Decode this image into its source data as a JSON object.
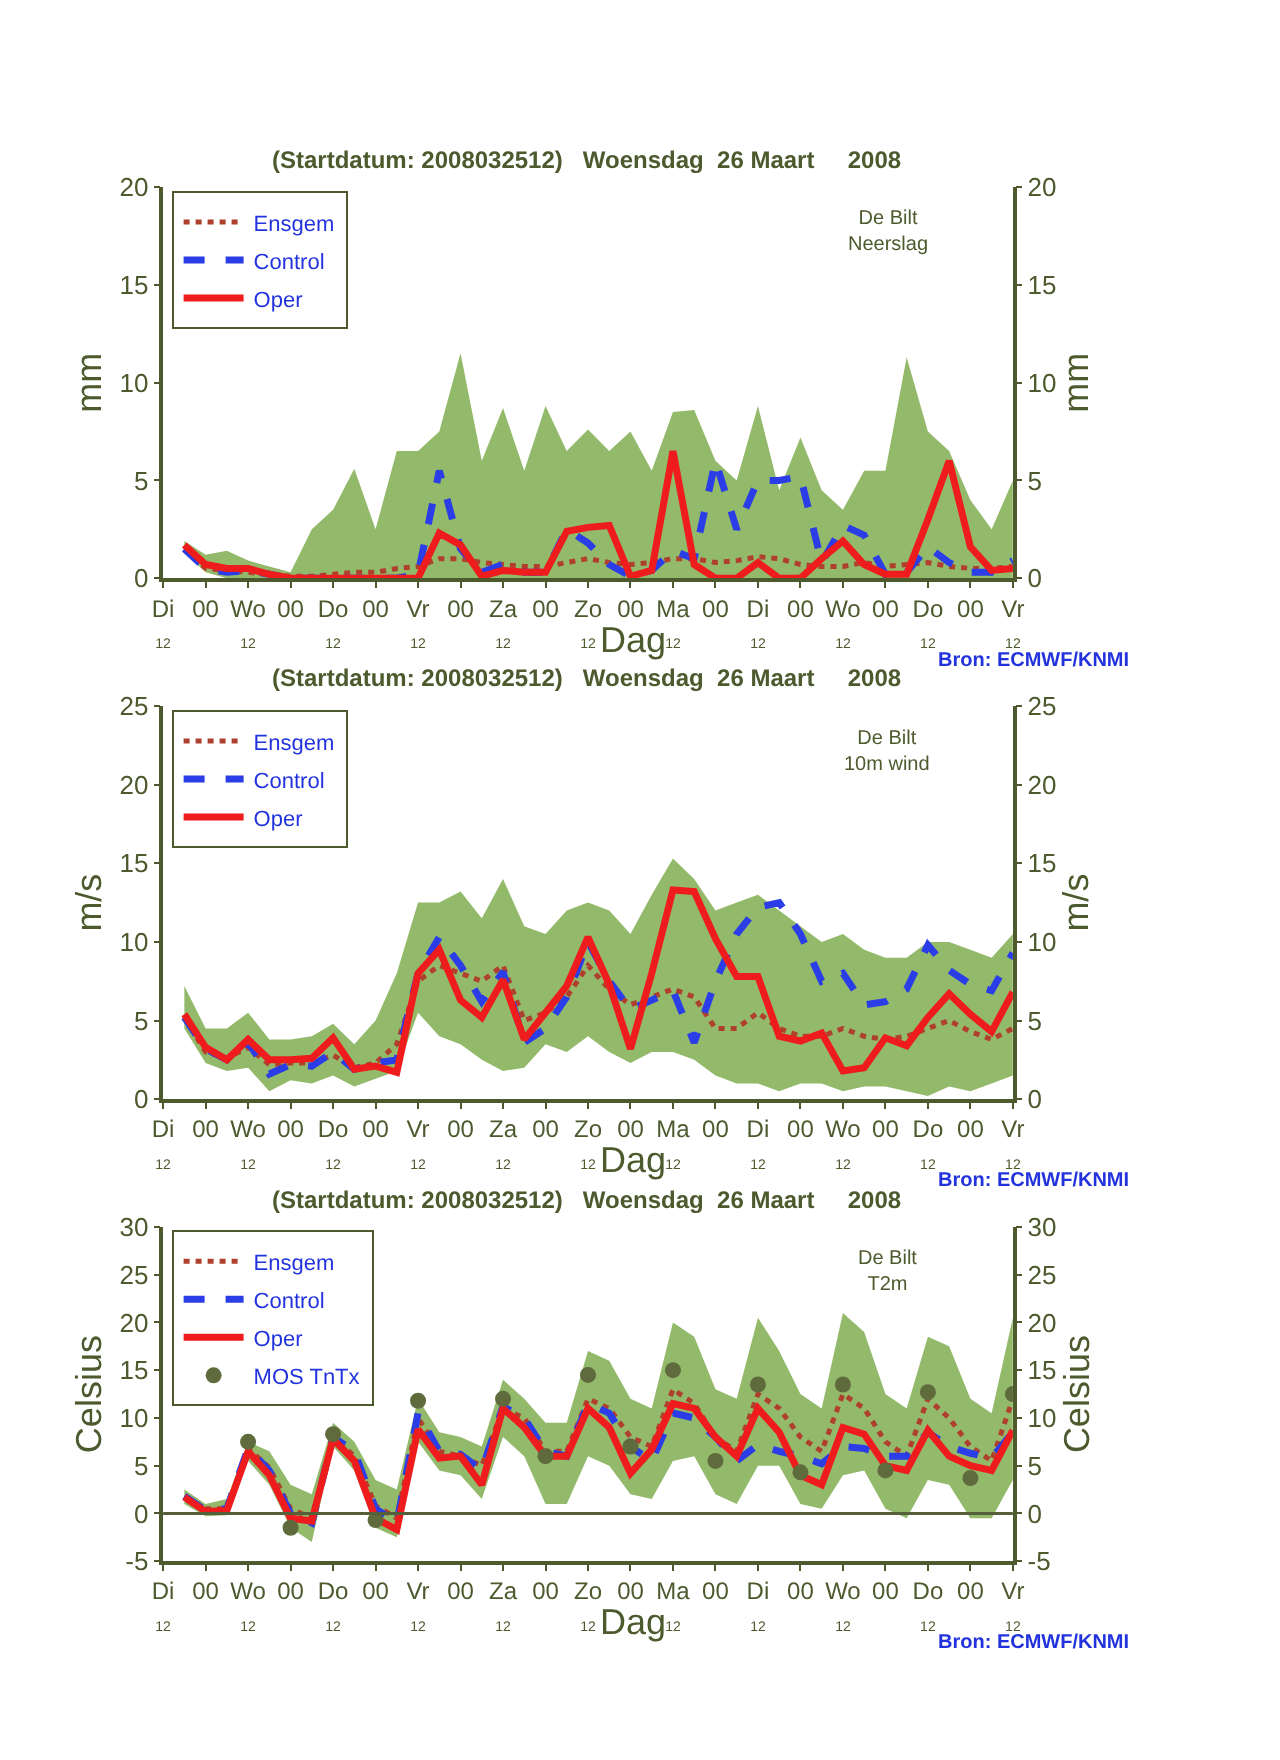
{
  "chart_data": [
    {
      "type": "line",
      "title": "(Startdatum: 2008032512)   Woensdag  26 Maart     2008",
      "xlabel": "Dag",
      "ylabel": "mm",
      "y2label": "mm",
      "annotations": [
        "De Bilt\nNeerslag",
        "Bron: ECMWF/KNMI"
      ],
      "categories": [
        "Di\n12",
        null,
        "00",
        null,
        "Wo\n12",
        null,
        "00",
        null,
        "Do\n12",
        null,
        "00",
        null,
        "Vr\n12",
        null,
        "00",
        null,
        "Za\n12",
        null,
        "00",
        null,
        "Zo\n12",
        null,
        "00",
        null,
        "Ma\n12",
        null,
        "00",
        null,
        "Di\n12",
        null,
        "00",
        null,
        "Wo\n12",
        null,
        "00",
        null,
        "Do\n12",
        null,
        "00",
        null,
        "Vr\n12"
      ],
      "ylim": [
        0,
        20
      ],
      "yticks": [
        0,
        5,
        10,
        15,
        20
      ],
      "y2lim": [
        0,
        20
      ],
      "y2ticks": [
        0,
        5,
        10,
        15,
        20
      ],
      "legend": "top left",
      "series": [
        {
          "name": "Ensgem",
          "color": "#b0402e",
          "line_style": "dotted",
          "values": [
            null,
            1.5,
            0.5,
            0.4,
            0.3,
            0.2,
            0.1,
            0.1,
            0.2,
            0.3,
            0.3,
            0.5,
            0.6,
            1.0,
            1.0,
            0.8,
            0.7,
            0.6,
            0.6,
            0.8,
            1.0,
            0.8,
            0.7,
            0.8,
            1.0,
            1.0,
            0.8,
            0.9,
            1.1,
            1.0,
            0.7,
            0.6,
            0.6,
            0.8,
            0.6,
            0.7,
            0.8,
            0.6,
            0.5,
            0.5,
            0.6
          ],
          "lower": [
            null,
            1.3,
            0.3,
            0,
            0,
            0,
            0,
            0,
            0,
            0,
            0,
            0,
            0,
            0,
            0,
            0,
            0,
            0,
            0,
            0,
            0,
            0,
            0,
            0,
            0,
            0,
            0,
            0,
            0,
            0,
            0,
            0,
            0,
            0,
            0,
            0,
            0,
            0,
            0,
            0,
            0
          ],
          "upper": [
            null,
            1.9,
            1.2,
            1.4,
            0.9,
            0.6,
            0.3,
            2.5,
            3.5,
            5.6,
            2.5,
            6.5,
            6.5,
            7.5,
            11.5,
            6.0,
            8.7,
            5.5,
            8.8,
            6.5,
            7.6,
            6.5,
            7.5,
            5.5,
            8.5,
            8.6,
            6.0,
            5.0,
            8.8,
            4.5,
            7.2,
            4.5,
            3.5,
            5.5,
            5.5,
            11.3,
            7.5,
            6.5,
            4.0,
            2.5,
            5.0
          ]
        },
        {
          "name": "Control",
          "color": "#2a3de6",
          "line_style": "dashed",
          "values": [
            null,
            1.5,
            0.5,
            0.3,
            0.4,
            0.2,
            0,
            0,
            0,
            0,
            0,
            0,
            0.2,
            5.5,
            1.5,
            0.3,
            0.7,
            0.3,
            0.3,
            2.5,
            1.8,
            0.7,
            0.1,
            0.4,
            1.4,
            1.0,
            6.0,
            2.5,
            5.0,
            5.0,
            5.2,
            0.8,
            2.7,
            2.2,
            0.2,
            0.3,
            1.6,
            0.8,
            0.3,
            0.3,
            0.9
          ]
        },
        {
          "name": "Oper",
          "color": "#ee1c1c",
          "line_style": "solid",
          "values": [
            null,
            1.7,
            0.7,
            0.5,
            0.5,
            0.2,
            0,
            0,
            0,
            0,
            0,
            0,
            0,
            2.3,
            1.7,
            0.1,
            0.4,
            0.3,
            0.3,
            2.4,
            2.6,
            2.7,
            0.1,
            0.4,
            6.5,
            0.7,
            0,
            0,
            0.8,
            0,
            0,
            1.0,
            1.9,
            0.7,
            0.2,
            0.2,
            3.0,
            6.0,
            1.6,
            0.4,
            0.5
          ]
        }
      ]
    },
    {
      "type": "line",
      "title": "(Startdatum: 2008032512)   Woensdag  26 Maart     2008",
      "xlabel": "Dag",
      "ylabel": "m/s",
      "y2label": "m/s",
      "annotations": [
        "De Bilt\n10m wind",
        "Bron: ECMWF/KNMI"
      ],
      "categories": [
        "Di\n12",
        null,
        "00",
        null,
        "Wo\n12",
        null,
        "00",
        null,
        "Do\n12",
        null,
        "00",
        null,
        "Vr\n12",
        null,
        "00",
        null,
        "Za\n12",
        null,
        "00",
        null,
        "Zo\n12",
        null,
        "00",
        null,
        "Ma\n12",
        null,
        "00",
        null,
        "Di\n12",
        null,
        "00",
        null,
        "Wo\n12",
        null,
        "00",
        null,
        "Do\n12",
        null,
        "00",
        null,
        "Vr\n12"
      ],
      "ylim": [
        0,
        25
      ],
      "yticks": [
        0,
        5,
        10,
        15,
        20,
        25
      ],
      "y2lim": [
        0,
        25
      ],
      "y2ticks": [
        0,
        5,
        10,
        15,
        20,
        25
      ],
      "legend": "top left",
      "series": [
        {
          "name": "Ensgem",
          "color": "#b0402e",
          "line_style": "dotted",
          "values": [
            null,
            5.2,
            3.0,
            2.6,
            3.3,
            2.2,
            2.3,
            2.3,
            2.8,
            2.0,
            2.3,
            3.5,
            7.5,
            8.5,
            8.0,
            7.5,
            8.5,
            5.0,
            5.5,
            6.5,
            8.5,
            7.0,
            6.0,
            6.5,
            7.0,
            6.5,
            4.5,
            4.5,
            5.5,
            4.5,
            4.0,
            4.0,
            4.5,
            4.0,
            3.8,
            4.0,
            4.5,
            5.0,
            4.3,
            3.8,
            4.5
          ],
          "lower": [
            null,
            4.5,
            2.3,
            1.8,
            2.0,
            0.5,
            1.2,
            1.0,
            1.5,
            0.8,
            1.3,
            1.8,
            5.5,
            4.0,
            3.5,
            2.5,
            1.8,
            2.0,
            3.5,
            3.0,
            4.0,
            3.0,
            2.3,
            3.0,
            3.0,
            2.5,
            1.5,
            1.0,
            1.0,
            0.5,
            1.0,
            1.0,
            0.5,
            0.8,
            0.8,
            0.5,
            0.2,
            0.8,
            0.5,
            1.0,
            1.5
          ],
          "upper": [
            null,
            7.2,
            4.5,
            4.5,
            5.5,
            3.8,
            3.8,
            4.0,
            4.8,
            3.5,
            5.0,
            8.0,
            12.5,
            12.5,
            13.2,
            11.5,
            14.0,
            11.0,
            10.5,
            12.0,
            12.5,
            12.0,
            10.5,
            13.0,
            15.3,
            14.0,
            12.0,
            12.5,
            13.0,
            12.0,
            11.0,
            10.0,
            10.5,
            9.5,
            9.0,
            9.0,
            10.0,
            10.0,
            9.5,
            9.0,
            10.5
          ]
        },
        {
          "name": "Control",
          "color": "#2a3de6",
          "line_style": "dashed",
          "values": [
            null,
            5.2,
            3.2,
            2.5,
            3.6,
            1.6,
            2.2,
            2.1,
            3.0,
            1.9,
            2.3,
            2.5,
            8.0,
            10.3,
            8.5,
            6.2,
            8.1,
            3.6,
            4.5,
            6.5,
            10.0,
            7.5,
            5.7,
            6.3,
            6.9,
            3.6,
            7.5,
            10.5,
            12.2,
            12.5,
            10.5,
            7.5,
            8.0,
            6.0,
            6.2,
            7.0,
            9.8,
            8.2,
            7.3,
            6.9,
            9.3
          ]
        },
        {
          "name": "Oper",
          "color": "#ee1c1c",
          "line_style": "solid",
          "values": [
            null,
            5.4,
            3.3,
            2.5,
            3.8,
            2.5,
            2.5,
            2.6,
            3.9,
            1.9,
            2.1,
            1.7,
            8.0,
            9.5,
            6.3,
            5.2,
            7.6,
            3.8,
            5.5,
            7.2,
            10.3,
            7.3,
            3.2,
            8.0,
            13.3,
            13.2,
            10.2,
            7.8,
            7.8,
            4.0,
            3.7,
            4.2,
            1.8,
            2.0,
            3.9,
            3.4,
            5.2,
            6.7,
            5.4,
            4.3,
            6.8
          ]
        }
      ]
    },
    {
      "type": "line",
      "title": "(Startdatum: 2008032512)   Woensdag  26 Maart     2008",
      "xlabel": "Dag",
      "ylabel": "Celsius",
      "y2label": "Celsius",
      "annotations": [
        "De Bilt\nT2m",
        "Bron: ECMWF/KNMI"
      ],
      "categories": [
        "Di\n12",
        null,
        "00",
        null,
        "Wo\n12",
        null,
        "00",
        null,
        "Do\n12",
        null,
        "00",
        null,
        "Vr\n12",
        null,
        "00",
        null,
        "Za\n12",
        null,
        "00",
        null,
        "Zo\n12",
        null,
        "00",
        null,
        "Ma\n12",
        null,
        "00",
        null,
        "Di\n12",
        null,
        "00",
        null,
        "Wo\n12",
        null,
        "00",
        null,
        "Do\n12",
        null,
        "00",
        null,
        "Vr\n12"
      ],
      "ylim": [
        -5,
        30
      ],
      "yticks": [
        -5,
        0,
        5,
        10,
        15,
        20,
        25,
        30
      ],
      "y2lim": [
        -5,
        30
      ],
      "y2ticks": [
        -5,
        0,
        5,
        10,
        15,
        20,
        25,
        30
      ],
      "legend": "top left",
      "ref_lines": [
        {
          "axis": "y",
          "value": 0,
          "color": "#55603a"
        }
      ],
      "series": [
        {
          "name": "Ensgem",
          "color": "#b0402e",
          "line_style": "dotted",
          "values": [
            null,
            1.8,
            0.5,
            0.5,
            6.8,
            4.8,
            0.5,
            -0.5,
            8.0,
            6.0,
            0.8,
            -0.5,
            10.0,
            6.5,
            6.0,
            5.0,
            11.0,
            10.0,
            6.5,
            6.5,
            12.0,
            11.0,
            8.0,
            7.0,
            13.0,
            11.5,
            8.0,
            6.5,
            12.5,
            11.0,
            8.0,
            6.5,
            12.5,
            11.0,
            7.5,
            6.0,
            12.0,
            10.0,
            7.0,
            5.5,
            12.0
          ],
          "lower": [
            null,
            1.0,
            -0.3,
            -0.2,
            5.5,
            3.0,
            -1.5,
            -3.0,
            7.0,
            4.5,
            -1.5,
            -2.5,
            7.5,
            4.5,
            4.0,
            1.5,
            8.0,
            6.0,
            1.0,
            1.0,
            6.0,
            5.0,
            2.0,
            1.5,
            5.5,
            6.0,
            2.0,
            1.0,
            5.0,
            5.0,
            1.0,
            0.5,
            4.0,
            4.5,
            0.5,
            -0.5,
            3.5,
            3.0,
            -0.5,
            -0.5,
            3.5
          ],
          "upper": [
            null,
            2.5,
            1.0,
            1.5,
            7.5,
            6.5,
            3.0,
            2.0,
            9.5,
            7.5,
            3.5,
            2.5,
            12.0,
            8.5,
            8.0,
            7.0,
            14.0,
            12.0,
            9.5,
            9.5,
            17.0,
            16.0,
            12.0,
            11.0,
            20.0,
            18.5,
            13.0,
            12.0,
            20.5,
            17.0,
            12.5,
            11.0,
            21.0,
            19.0,
            12.5,
            11.0,
            18.5,
            17.5,
            12.0,
            10.5,
            20.5
          ]
        },
        {
          "name": "Control",
          "color": "#2a3de6",
          "line_style": "dashed",
          "values": [
            null,
            1.8,
            0.3,
            0.5,
            6.8,
            4.5,
            0.0,
            -1.0,
            8.0,
            6.5,
            0.5,
            -1.0,
            10.5,
            6.5,
            6.2,
            4.5,
            11.2,
            10.0,
            6.5,
            6.0,
            11.5,
            10.5,
            7.0,
            5.5,
            10.5,
            10.0,
            8.0,
            5.5,
            7.2,
            6.5,
            6.0,
            5.2,
            7.0,
            6.8,
            6.0,
            6.0,
            8.5,
            7.0,
            6.3,
            5.8,
            8.5
          ]
        },
        {
          "name": "Oper",
          "color": "#ee1c1c",
          "line_style": "solid",
          "values": [
            null,
            1.7,
            0.2,
            0.3,
            6.5,
            4.0,
            -0.5,
            -0.8,
            7.8,
            5.5,
            -0.5,
            -1.7,
            8.8,
            5.8,
            6.0,
            3.0,
            11.0,
            9.0,
            6.0,
            6.0,
            11.0,
            9.0,
            4.2,
            6.7,
            11.5,
            11.0,
            8.0,
            6.0,
            11.0,
            8.5,
            4.0,
            3.0,
            9.0,
            8.3,
            5.0,
            4.5,
            8.7,
            6.0,
            5.0,
            4.5,
            8.7
          ]
        },
        {
          "name": "MOS TnTx",
          "type": "scatter",
          "color": "#5f6b3c",
          "marker": "circle",
          "values": [
            null,
            null,
            null,
            null,
            7.5,
            null,
            -1.5,
            null,
            8.3,
            null,
            -0.7,
            null,
            11.8,
            null,
            null,
            null,
            12.0,
            null,
            6.0,
            null,
            14.5,
            null,
            7.0,
            null,
            15.0,
            null,
            5.5,
            null,
            13.5,
            null,
            4.3,
            null,
            13.5,
            null,
            4.5,
            null,
            12.7,
            null,
            3.7,
            null,
            12.5
          ]
        }
      ]
    }
  ]
}
